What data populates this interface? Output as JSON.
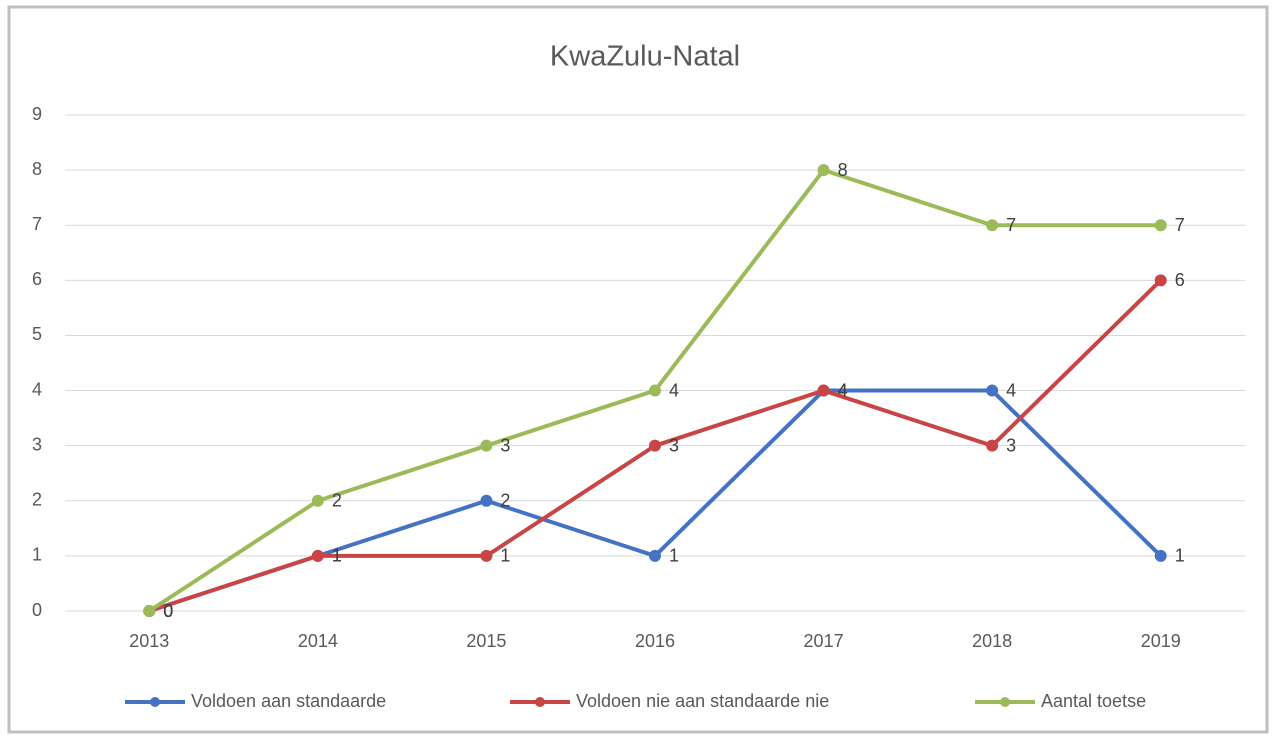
{
  "chart_data": {
    "type": "line",
    "title": "KwaZulu-Natal",
    "categories": [
      "2013",
      "2014",
      "2015",
      "2016",
      "2017",
      "2018",
      "2019"
    ],
    "series": [
      {
        "name": "Voldoen aan standaarde",
        "color": "#4472c4",
        "values": [
          0,
          1,
          2,
          1,
          4,
          4,
          1
        ]
      },
      {
        "name": "Voldoen nie aan standaarde nie",
        "color": "#c94545",
        "values": [
          0,
          1,
          1,
          3,
          4,
          3,
          6
        ]
      },
      {
        "name": "Aantal toetse",
        "color": "#9bbb59",
        "values": [
          0,
          2,
          3,
          4,
          8,
          7,
          7
        ]
      }
    ],
    "ylim": [
      0,
      9
    ],
    "yticks": [
      0,
      1,
      2,
      3,
      4,
      5,
      6,
      7,
      8,
      9
    ],
    "grid": true,
    "legend": "bottom"
  }
}
